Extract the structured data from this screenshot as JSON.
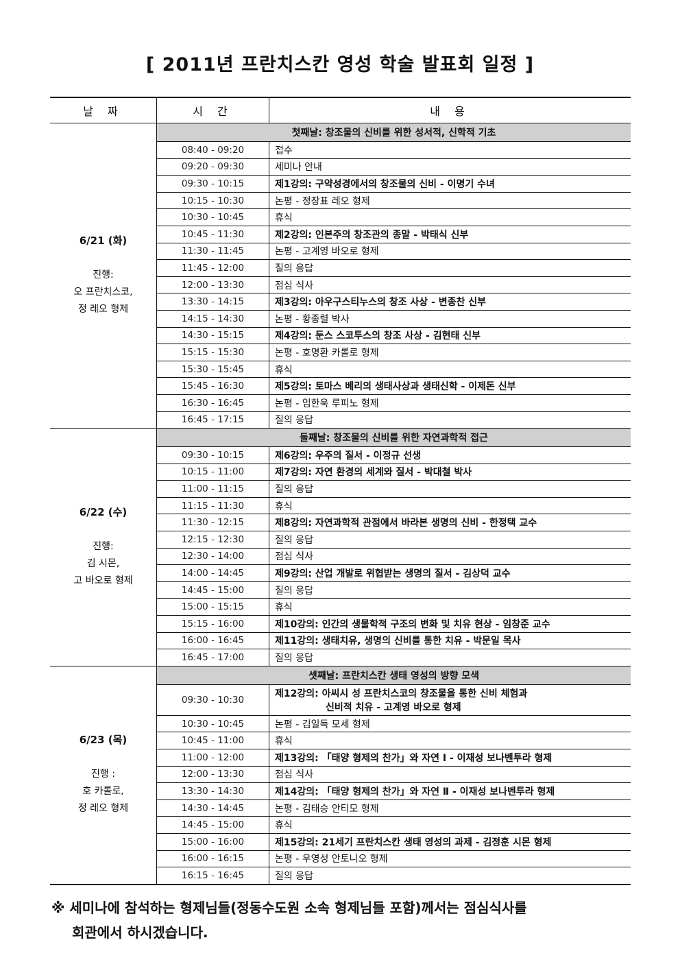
{
  "title": "[ 2011년 프란치스칸 영성 학술 발표회 일정 ]",
  "table": {
    "headers": [
      "날 짜",
      "시 간",
      "내 용"
    ],
    "days": [
      {
        "date": "6/21 (화)",
        "host": [
          "진행:",
          "오 프란치스코,",
          "정 레오 형제"
        ],
        "heading": "첫째날: 창조물의 신비를 위한 성서적, 신학적 기초",
        "rows": [
          {
            "time": "08:40 - 09:20",
            "text": "접수",
            "bold": false
          },
          {
            "time": "09:20 - 09:30",
            "text": "세미나 안내",
            "bold": false
          },
          {
            "time": "09:30 - 10:15",
            "text": "제1강의: 구약성경에서의 창조물의 신비 - 이명기 수녀",
            "bold": true
          },
          {
            "time": "10:15 - 10:30",
            "text": "논평 - 정장표 레오 형제",
            "bold": false
          },
          {
            "time": "10:30 - 10:45",
            "text": "휴식",
            "bold": false
          },
          {
            "time": "10:45 - 11:30",
            "text": "제2강의: 인본주의 창조관의 종말 - 박태식 신부",
            "bold": true
          },
          {
            "time": "11:30 - 11:45",
            "text": "논평 - 고계영 바오로 형제",
            "bold": false
          },
          {
            "time": "11:45 - 12:00",
            "text": "질의 응답",
            "bold": false
          },
          {
            "time": "12:00 - 13:30",
            "text": "점심 식사",
            "bold": false
          },
          {
            "time": "13:30 - 14:15",
            "text": "제3강의: 아우구스티누스의 창조 사상 - 변종찬 신부",
            "bold": true
          },
          {
            "time": "14:15 - 14:30",
            "text": "논평 - 황종렬 박사",
            "bold": false
          },
          {
            "time": "14:30 - 15:15",
            "text": "제4강의: 둔스 스코투스의 창조 사상 - 김현태 신부",
            "bold": true
          },
          {
            "time": "15:15 - 15:30",
            "text": "논평 - 호명환 카롤로 형제",
            "bold": false
          },
          {
            "time": "15:30 - 15:45",
            "text": "휴식",
            "bold": false
          },
          {
            "time": "15:45 - 16:30",
            "text": "제5강의: 토마스 베리의 생태사상과 생태신학 - 이제돈 신부",
            "bold": true
          },
          {
            "time": "16:30 - 16:45",
            "text": "논평 - 임한욱 루피노 형제",
            "bold": false
          },
          {
            "time": "16:45 - 17:15",
            "text": "질의 응답",
            "bold": false
          }
        ]
      },
      {
        "date": "6/22 (수)",
        "host": [
          "진행:",
          "김 시몬,",
          "고 바오로 형제"
        ],
        "heading": "둘째날: 창조물의 신비를 위한 자연과학적 접근",
        "rows": [
          {
            "time": "09:30 - 10:15",
            "text": "제6강의: 우주의 질서 - 이정규 선생",
            "bold": true
          },
          {
            "time": "10:15 - 11:00",
            "text": "제7강의: 자연 환경의 세계와 질서 - 박대철 박사",
            "bold": true
          },
          {
            "time": "11:00 - 11:15",
            "text": "질의 응답",
            "bold": false
          },
          {
            "time": "11:15 - 11:30",
            "text": "휴식",
            "bold": false
          },
          {
            "time": "11:30 - 12:15",
            "text": "제8강의: 자연과학적 관점에서 바라본 생명의 신비 - 한정택 교수",
            "bold": true
          },
          {
            "time": "12:15 - 12:30",
            "text": "질의 응답",
            "bold": false
          },
          {
            "time": "12:30 - 14:00",
            "text": "점심 식사",
            "bold": false
          },
          {
            "time": "14:00 - 14:45",
            "text": "제9강의: 산업 개발로 위협받는 생명의 질서 - 김상덕 교수",
            "bold": true
          },
          {
            "time": "14:45 - 15:00",
            "text": "질의 응답",
            "bold": false
          },
          {
            "time": "15:00 - 15:15",
            "text": "휴식",
            "bold": false
          },
          {
            "time": "15:15 - 16:00",
            "text": "제10강의: 인간의 생물학적 구조의 변화 및 치유 현상 - 임창준 교수",
            "bold": true
          },
          {
            "time": "16:00 - 16:45",
            "text": "제11강의: 생태치유, 생명의 신비를 통한 치유 - 박문일 목사",
            "bold": true
          },
          {
            "time": "16:45 - 17:00",
            "text": "질의 응답",
            "bold": false
          }
        ]
      },
      {
        "date": "6/23 (목)",
        "host": [
          "진행 :",
          "호 카롤로,",
          "정 레오 형제"
        ],
        "heading": "셋째날: 프란치스칸 생태 영성의 방향 모색",
        "rows": [
          {
            "time": "09:30 - 10:30",
            "text": "제12강의: 아씨시 성 프란치스코의 창조물을 통한 신비 체험과",
            "text2": "신비적 치유 - 고계영 바오로 형제",
            "bold": true
          },
          {
            "time": "10:30 - 10:45",
            "text": "논평 - 김일득 모세 형제",
            "bold": false
          },
          {
            "time": "10:45 - 11:00",
            "text": "휴식",
            "bold": false
          },
          {
            "time": "11:00 - 12:00",
            "text": "제13강의: 「태양 형제의 찬가」와 자연 Ⅰ - 이재성 보나벤투라 형제",
            "bold": true
          },
          {
            "time": "12:00 - 13:30",
            "text": "점심 식사",
            "bold": false
          },
          {
            "time": "13:30 - 14:30",
            "text": "제14강의: 「태양 형제의 찬가」와 자연 Ⅱ - 이재성 보나벤투라 형제",
            "bold": true
          },
          {
            "time": "14:30 - 14:45",
            "text": "논평 - 김태승 안티모 형제",
            "bold": false
          },
          {
            "time": "14:45 - 15:00",
            "text": "휴식",
            "bold": false
          },
          {
            "time": "15:00 - 16:00",
            "text": "제15강의: 21세기 프란치스칸 생태 영성의 과제 - 김정훈 시몬 형제",
            "bold": true
          },
          {
            "time": "16:00 - 16:15",
            "text": "논평 - 우영성 안토니오 형제",
            "bold": false
          },
          {
            "time": "16:15 - 16:45",
            "text": "질의 응답",
            "bold": false
          }
        ]
      }
    ]
  },
  "footer": {
    "line1": "※ 세미나에 참석하는 형제님들(정동수도원 소속 형제님들 포함)께서는 점심식사를",
    "line2": "회관에서 하시겠습니다."
  }
}
